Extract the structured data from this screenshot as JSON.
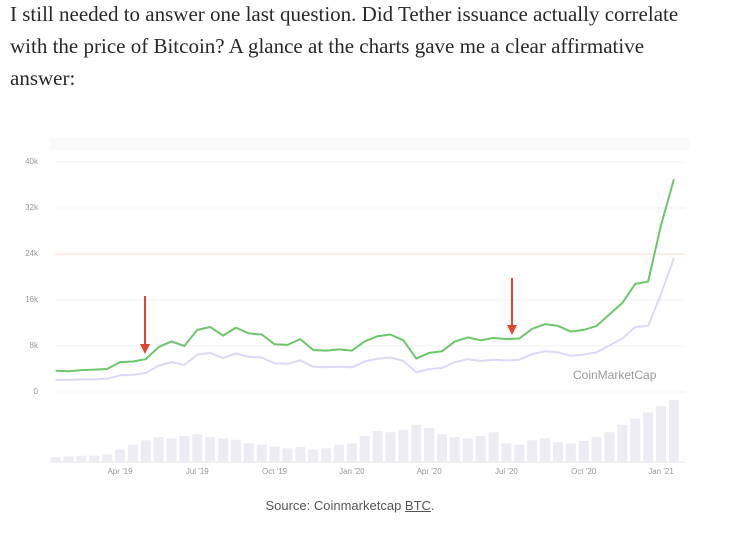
{
  "paragraph": "I still needed to answer one last question. Did Tether issuance actually correlate with the price of Bitcoin? A glance at the charts gave me a clear affirmative answer:",
  "caption": {
    "text": "Source: Coinmarketcap ",
    "link": "BTC",
    "end": "."
  },
  "chart_data": {
    "type": "line",
    "watermark": "CoinMarketCap",
    "categories": [
      null,
      null,
      null,
      null,
      null,
      null,
      "Apr '19",
      null,
      null,
      null,
      null,
      null,
      "Jul '19",
      null,
      null,
      null,
      null,
      null,
      "Oct '19",
      null,
      null,
      null,
      null,
      null,
      "Jan '20",
      null,
      null,
      null,
      null,
      null,
      "Apr '20",
      null,
      null,
      null,
      null,
      null,
      "Jul '20",
      null,
      null,
      null,
      null,
      null,
      "Oct '20",
      null,
      null,
      null,
      null,
      null,
      "Jan '21",
      null
    ],
    "series": [
      {
        "color": "#6cc76a",
        "values": [
          null,
          3700,
          3600,
          3800,
          3900,
          4000,
          5200,
          5300,
          5700,
          7800,
          8800,
          8000,
          10800,
          11300,
          9800,
          11200,
          10200,
          10000,
          8300,
          8200,
          9200,
          7300,
          7200,
          7400,
          7200,
          8800,
          9700,
          10000,
          9000,
          5800,
          6800,
          7100,
          8800,
          9500,
          9000,
          9400,
          9200,
          9300,
          11000,
          11800,
          11500,
          10500,
          10800,
          11500,
          13500,
          15500,
          18800,
          19200,
          29000,
          37000
        ]
      },
      {
        "color": "#dadaf6",
        "values": [
          null,
          2100,
          2100,
          2200,
          2200,
          2300,
          2900,
          3000,
          3300,
          4600,
          5200,
          4700,
          6500,
          6800,
          5900,
          6700,
          6100,
          6000,
          5000,
          4900,
          5500,
          4400,
          4300,
          4400,
          4300,
          5300,
          5800,
          6000,
          5400,
          3400,
          4000,
          4200,
          5200,
          5700,
          5400,
          5600,
          5500,
          5600,
          6600,
          7100,
          6900,
          6300,
          6500,
          6900,
          8100,
          9300,
          11300,
          11500,
          17000,
          23300
        ]
      }
    ],
    "volume": {
      "color": "#ececf2",
      "ylim": [
        0,
        100
      ],
      "values": [
        null,
        8,
        9,
        10,
        10,
        12,
        20,
        28,
        35,
        40,
        38,
        42,
        45,
        40,
        38,
        36,
        30,
        28,
        25,
        22,
        24,
        20,
        22,
        28,
        30,
        42,
        50,
        48,
        52,
        60,
        55,
        45,
        40,
        38,
        42,
        48,
        30,
        28,
        35,
        38,
        32,
        30,
        34,
        40,
        48,
        60,
        70,
        80,
        90,
        100
      ]
    },
    "ylim": [
      0,
      40000
    ],
    "yticks": [
      0,
      {
        "value": 8000,
        "label": "8k"
      },
      {
        "value": 16000,
        "label": "16k"
      },
      {
        "value": 24000,
        "label": "24k"
      },
      {
        "value": 32000,
        "label": "32k"
      },
      {
        "value": 40000,
        "label": "40k"
      }
    ],
    "reference_line": {
      "value": 24000,
      "color": "#f8dcc8"
    },
    "grid": true
  }
}
